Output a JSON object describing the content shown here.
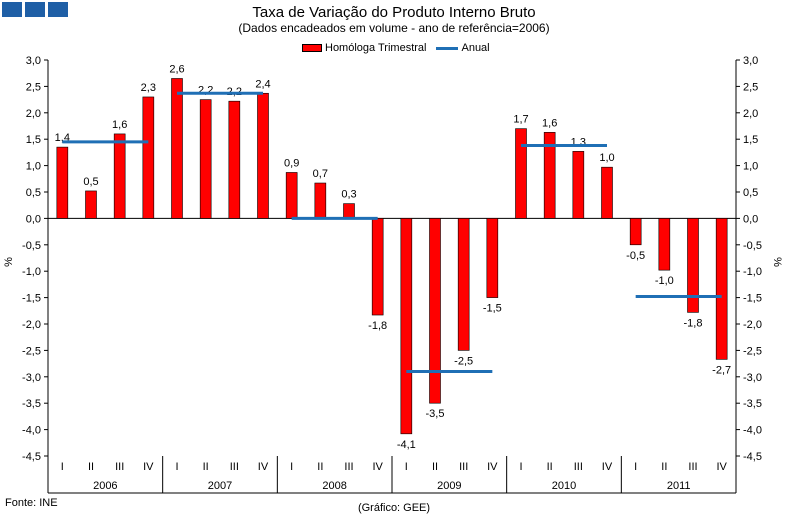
{
  "colors": {
    "bar": "#ff0000",
    "line": "#1f6fb5",
    "logo": "#1f5fa6"
  },
  "source": "Fonte: INE",
  "credit": "(Gráfico: GEE)",
  "chart_data": {
    "type": "bar",
    "title": "Taxa de Variação do Produto Interno Bruto",
    "subtitle": "(Dados encadeados em volume - ano de referência=2006)",
    "ylabel": "%",
    "ylim": [
      -4.5,
      3.0
    ],
    "ystep": 0.5,
    "y_tick_labels": [
      "3,0",
      "2,5",
      "2,0",
      "1,5",
      "1,0",
      "0,5",
      "0,0",
      "-0,5",
      "-1,0",
      "-1,5",
      "-2,0",
      "-2,5",
      "-3,0",
      "-3,5",
      "-4,0",
      "-4,5"
    ],
    "quarters": [
      "I",
      "II",
      "III",
      "IV"
    ],
    "years": [
      "2006",
      "2007",
      "2008",
      "2009",
      "2010",
      "2011"
    ],
    "legend_placement": "top",
    "series": [
      {
        "name": "Homóloga Trimestral",
        "kind": "bar",
        "values": [
          1.35,
          0.52,
          1.6,
          2.3,
          2.65,
          2.25,
          2.22,
          2.37,
          0.87,
          0.67,
          0.28,
          -1.83,
          -4.08,
          -3.5,
          -2.5,
          -1.5,
          1.7,
          1.63,
          1.27,
          0.97,
          -0.5,
          -0.98,
          -1.78,
          -2.67
        ],
        "labels": [
          "1,4",
          "0,5",
          "1,6",
          "2,3",
          "2,6",
          "2,2",
          "2,2",
          "2,4",
          "0,9",
          "0,7",
          "0,3",
          "-1,8",
          "-4,1",
          "-3,5",
          "-2,5",
          "-1,5",
          "1,7",
          "1,6",
          "1,3",
          "1,0",
          "-0,5",
          "-1,0",
          "-1,8",
          "-2,7"
        ]
      },
      {
        "name": "Anual",
        "kind": "line",
        "values": [
          1.45,
          2.37,
          0.0,
          -2.9,
          1.38,
          -1.48
        ]
      }
    ],
    "grid": false
  }
}
